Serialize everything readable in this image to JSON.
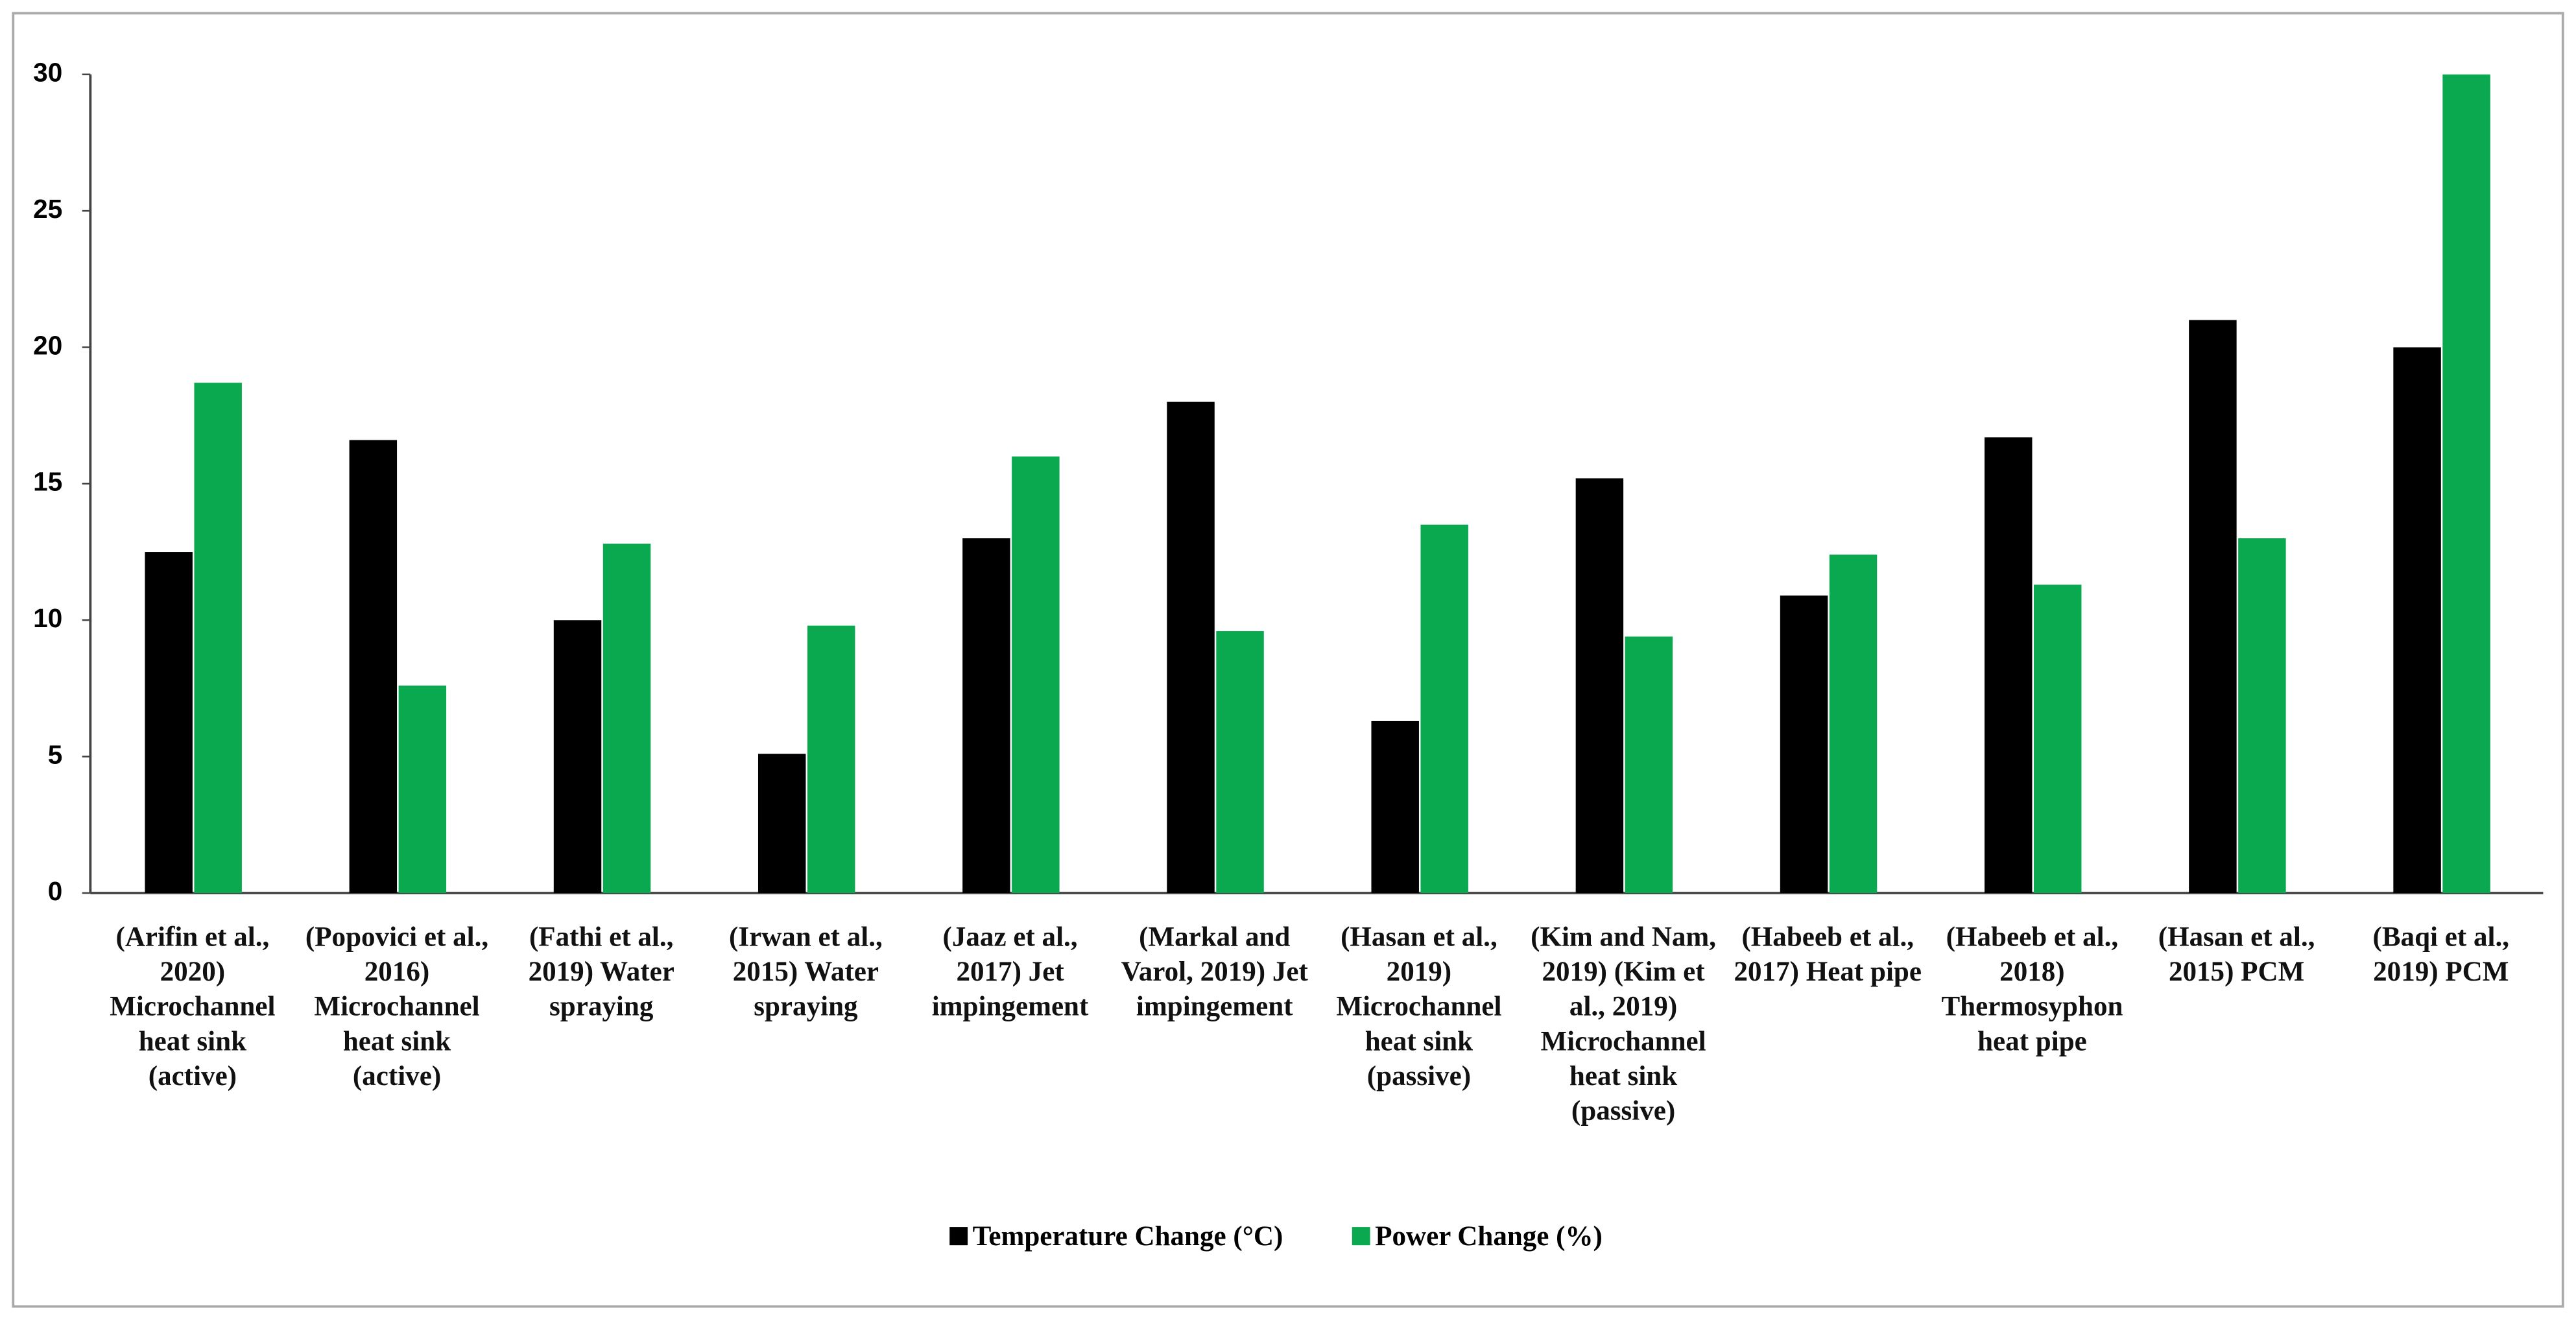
{
  "chart_data": {
    "type": "bar",
    "categories": [
      "(Arifin et al., 2020) Microchannel heat sink (active)",
      "(Popovici et al., 2016) Microchannel heat sink (active)",
      "(Fathi et al., 2019) Water spraying",
      "(Irwan et al., 2015) Water spraying",
      "(Jaaz et al., 2017) Jet impingement",
      "(Markal and Varol, 2019) Jet impingement",
      "(Hasan et al., 2019) Microchannel heat sink (passive)",
      "(Kim and Nam, 2019) (Kim et al., 2019) Microchannel heat sink (passive)",
      "(Habeeb et al., 2017) Heat pipe",
      "(Habeeb et al., 2018) Thermosyphon heat pipe",
      "(Hasan et al., 2015) PCM",
      "(Baqi et al., 2019) PCM"
    ],
    "series": [
      {
        "name": "Temperature Change (°C)",
        "color": "#000000",
        "values": [
          12.5,
          16.6,
          10,
          5.1,
          13,
          18,
          6.3,
          15.2,
          10.9,
          16.7,
          21,
          20
        ]
      },
      {
        "name": "Power Change (%)",
        "color": "#0aa84f",
        "values": [
          18.7,
          7.6,
          12.8,
          9.8,
          16,
          9.6,
          13.5,
          9.4,
          12.4,
          11.3,
          13,
          30
        ]
      }
    ],
    "ylim": [
      0,
      30
    ],
    "yticks": [
      0,
      5,
      10,
      15,
      20,
      25,
      30
    ],
    "grid": false,
    "legend": "bottom"
  }
}
